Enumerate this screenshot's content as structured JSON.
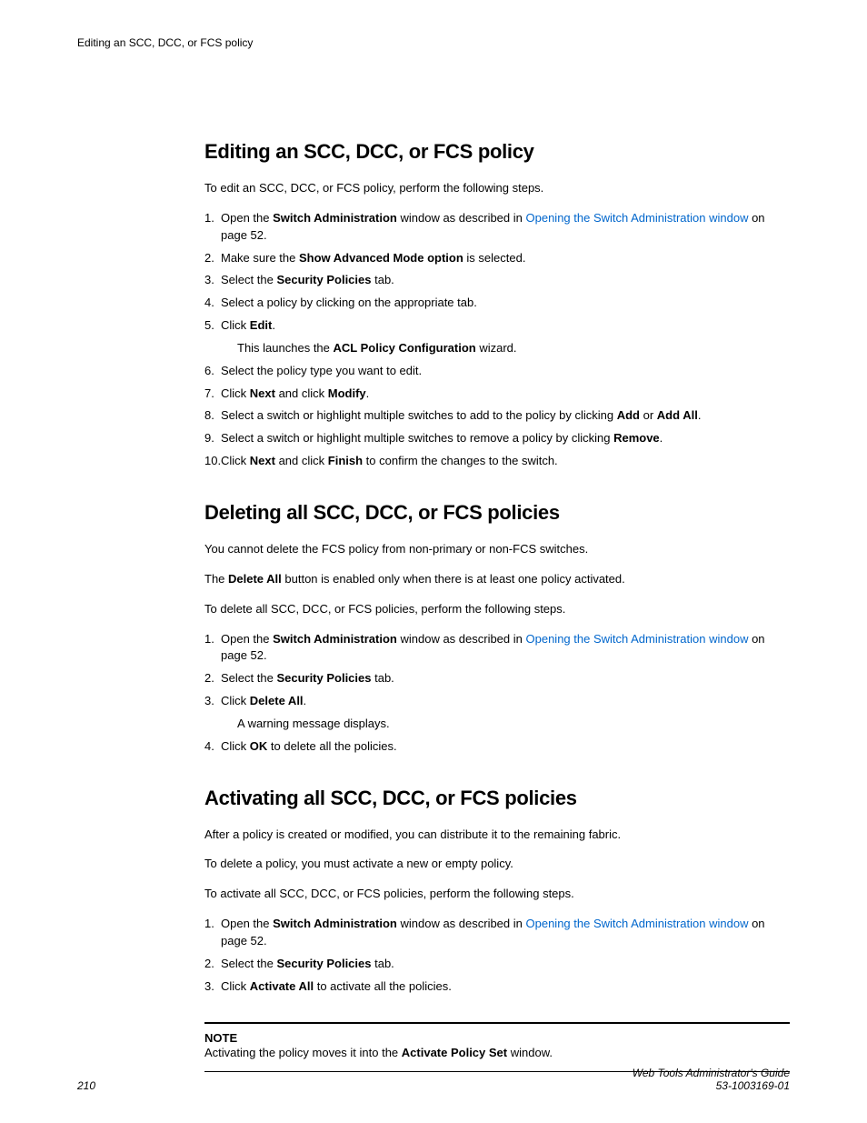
{
  "header": {
    "text": "Editing an SCC, DCC, or FCS policy"
  },
  "sections": {
    "edit": {
      "title": "Editing an SCC, DCC, or FCS policy",
      "intro": "To edit an SCC, DCC, or FCS policy, perform the following steps.",
      "steps": {
        "s1_pre": "Open the ",
        "s1_bold": "Switch Administration",
        "s1_mid": " window as described in ",
        "s1_link": "Opening the Switch Administration window",
        "s1_post": " on page 52.",
        "s2_pre": "Make sure the ",
        "s2_bold": "Show Advanced Mode option",
        "s2_post": " is selected.",
        "s3_pre": "Select the ",
        "s3_bold": "Security Policies",
        "s3_post": " tab.",
        "s4": "Select a policy by clicking on the appropriate tab.",
        "s5_pre": "Click ",
        "s5_bold": "Edit",
        "s5_post": ".",
        "s5_sub_pre": "This launches the ",
        "s5_sub_bold": "ACL Policy Configuration",
        "s5_sub_post": " wizard.",
        "s6": "Select the policy type you want to edit.",
        "s7_pre": "Click ",
        "s7_b1": "Next",
        "s7_mid": " and click ",
        "s7_b2": "Modify",
        "s7_post": ".",
        "s8_pre": "Select a switch or highlight multiple switches to add to the policy by clicking ",
        "s8_b1": "Add",
        "s8_mid": " or ",
        "s8_b2": "Add All",
        "s8_post": ".",
        "s9_pre": "Select a switch or highlight multiple switches to remove a policy by clicking ",
        "s9_b1": "Remove",
        "s9_post": ".",
        "s10_pre": "Click ",
        "s10_b1": "Next",
        "s10_mid": " and click ",
        "s10_b2": "Finish",
        "s10_post": " to confirm the changes to the switch."
      }
    },
    "delete": {
      "title": "Deleting all SCC, DCC, or FCS policies",
      "p1": "You cannot delete the FCS policy from non-primary or non-FCS switches.",
      "p2_pre": "The ",
      "p2_bold": "Delete All",
      "p2_post": " button is enabled only when there is at least one policy activated.",
      "p3": "To delete all SCC, DCC, or FCS policies, perform the following steps.",
      "steps": {
        "s1_pre": "Open the ",
        "s1_bold": "Switch Administration",
        "s1_mid": " window as described in ",
        "s1_link": "Opening the Switch Administration window",
        "s1_post": " on page 52.",
        "s2_pre": "Select the ",
        "s2_bold": "Security Policies",
        "s2_post": " tab.",
        "s3_pre": "Click ",
        "s3_bold": "Delete All",
        "s3_post": ".",
        "s3_sub": "A warning message displays.",
        "s4_pre": "Click ",
        "s4_bold": "OK",
        "s4_post": " to delete all the policies."
      }
    },
    "activate": {
      "title": "Activating all SCC, DCC, or FCS policies",
      "p1": "After a policy is created or modified, you can distribute it to the remaining fabric.",
      "p2": "To delete a policy, you must activate a new or empty policy.",
      "p3": "To activate all SCC, DCC, or FCS policies, perform the following steps.",
      "steps": {
        "s1_pre": "Open the ",
        "s1_bold": "Switch Administration",
        "s1_mid": " window as described in ",
        "s1_link": "Opening the Switch Administration window",
        "s1_post": " on page 52.",
        "s2_pre": "Select the ",
        "s2_bold": "Security Policies",
        "s2_post": " tab.",
        "s3_pre": "Click ",
        "s3_bold": "Activate All",
        "s3_post": " to activate all the policies."
      },
      "note_label": "NOTE",
      "note_pre": "Activating the policy moves it into the ",
      "note_bold": "Activate Policy Set",
      "note_post": " window."
    }
  },
  "footer": {
    "page": "210",
    "title": "Web Tools Administrator's Guide",
    "docnum": "53-1003169-01"
  },
  "colors": {
    "link": "#0066cc",
    "text": "#000000",
    "background": "#ffffff"
  }
}
